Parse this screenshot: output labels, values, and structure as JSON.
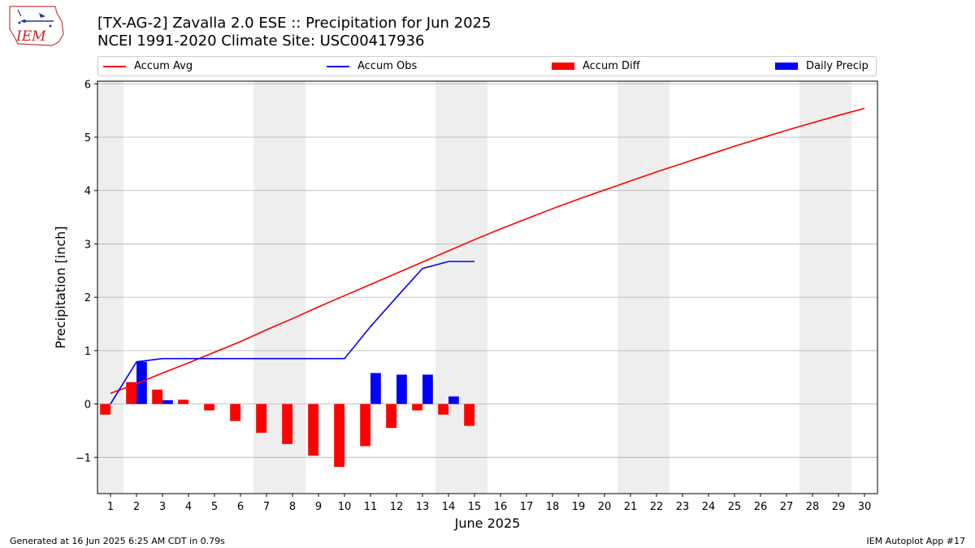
{
  "header": {
    "title_line1": "[TX-AG-2] Zavalla 2.0 ESE :: Precipitation for Jun 2025",
    "title_line2": "NCEI 1991-2020 Climate Site: USC00417936"
  },
  "logo": {
    "text": "IEM"
  },
  "legend": {
    "placement": "top, horizontal",
    "items": [
      {
        "label": "Accum Avg",
        "kind": "line",
        "color": "#ff0000"
      },
      {
        "label": "Accum Obs",
        "kind": "line",
        "color": "#0000ff"
      },
      {
        "label": "Accum Diff",
        "kind": "box",
        "color": "#ff0000"
      },
      {
        "label": "Daily Precip",
        "kind": "box",
        "color": "#0000ff"
      }
    ]
  },
  "footer": {
    "left": "Generated at 16 Jun 2025 6:25 AM CDT in 0.79s",
    "right": "IEM Autoplot App #17"
  },
  "colors": {
    "avg": "#ff0000",
    "obs": "#0000ff",
    "weekend_shade": "#eeeeee",
    "grid": "#b0b0b0"
  },
  "chart_data": {
    "type": "bar",
    "xlabel": "June 2025",
    "ylabel": "Precipitation [inch]",
    "xlim": [
      0.5,
      30.5
    ],
    "ylim": [
      -1.68,
      6.05
    ],
    "yticks": [
      -1,
      0,
      1,
      2,
      3,
      4,
      5,
      6
    ],
    "xticks": [
      1,
      2,
      3,
      4,
      5,
      6,
      7,
      8,
      9,
      10,
      11,
      12,
      13,
      14,
      15,
      16,
      17,
      18,
      19,
      20,
      21,
      22,
      23,
      24,
      25,
      26,
      27,
      28,
      29,
      30
    ],
    "grid": "horizontal",
    "weekend_days": [
      1,
      7,
      8,
      14,
      15,
      21,
      22,
      28,
      29
    ],
    "series": [
      {
        "name": "Accum Avg",
        "kind": "line",
        "x": [
          1,
          2,
          3,
          4,
          5,
          6,
          7,
          8,
          9,
          10,
          11,
          12,
          13,
          14,
          15,
          16,
          17,
          18,
          19,
          20,
          21,
          22,
          23,
          24,
          25,
          26,
          27,
          28,
          29,
          30
        ],
        "values": [
          0.2,
          0.38,
          0.58,
          0.77,
          0.97,
          1.17,
          1.39,
          1.6,
          1.82,
          2.03,
          2.24,
          2.45,
          2.66,
          2.87,
          3.08,
          3.28,
          3.47,
          3.66,
          3.84,
          4.01,
          4.18,
          4.35,
          4.51,
          4.67,
          4.83,
          4.98,
          5.13,
          5.27,
          5.41,
          5.54
        ]
      },
      {
        "name": "Accum Obs",
        "kind": "line",
        "x": [
          1,
          2,
          3,
          4,
          5,
          6,
          7,
          8,
          9,
          10,
          11,
          12,
          13,
          14,
          15
        ],
        "values": [
          0.0,
          0.79,
          0.85,
          0.85,
          0.85,
          0.85,
          0.85,
          0.85,
          0.85,
          0.85,
          1.45,
          2.0,
          2.54,
          2.67,
          2.67
        ]
      },
      {
        "name": "Accum Diff",
        "kind": "bar",
        "x": [
          1,
          2,
          3,
          4,
          5,
          6,
          7,
          8,
          9,
          10,
          11,
          12,
          13,
          14,
          15
        ],
        "values": [
          -0.2,
          0.41,
          0.27,
          0.08,
          -0.12,
          -0.32,
          -0.54,
          -0.75,
          -0.97,
          -1.18,
          -0.79,
          -0.45,
          -0.12,
          -0.2,
          -0.41
        ]
      },
      {
        "name": "Daily Precip",
        "kind": "bar",
        "x": [
          1,
          2,
          3,
          4,
          5,
          6,
          7,
          8,
          9,
          10,
          11,
          12,
          13,
          14,
          15
        ],
        "values": [
          0,
          0.79,
          0.07,
          0,
          0,
          0,
          0,
          0,
          0,
          0,
          0.58,
          0.55,
          0.55,
          0.14,
          0
        ]
      }
    ]
  }
}
